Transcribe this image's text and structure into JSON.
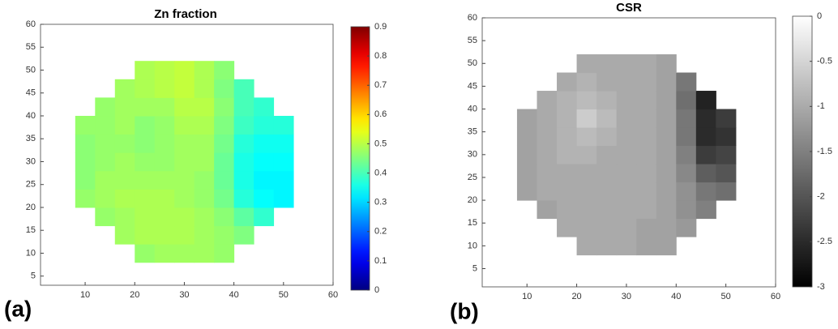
{
  "chart_data": [
    {
      "type": "heatmap",
      "title": "Zn fraction",
      "panel_label": "(a)",
      "colormap": "jet",
      "clim": [
        0,
        0.9
      ],
      "cticks": [
        0,
        0.1,
        0.2,
        0.3,
        0.4,
        0.5,
        0.6,
        0.7,
        0.8,
        0.9
      ],
      "xlim": [
        1,
        60
      ],
      "ylim": [
        3,
        60
      ],
      "xticks": [
        10,
        20,
        30,
        40,
        50,
        60
      ],
      "yticks": [
        5,
        10,
        15,
        20,
        25,
        30,
        35,
        40,
        45,
        50,
        55,
        60
      ],
      "x": [
        10,
        14,
        18,
        22,
        26,
        30,
        34,
        38,
        42,
        46,
        50
      ],
      "y": [
        10,
        14,
        18,
        22,
        26,
        30,
        34,
        38,
        42,
        46,
        50
      ],
      "z": [
        [
          null,
          null,
          null,
          0.47,
          0.48,
          0.48,
          0.48,
          0.47,
          null,
          null,
          null
        ],
        [
          null,
          null,
          0.48,
          0.49,
          0.49,
          0.49,
          0.48,
          0.47,
          0.45,
          null,
          null
        ],
        [
          null,
          0.47,
          0.48,
          0.49,
          0.49,
          0.49,
          0.48,
          0.46,
          0.42,
          0.38,
          null
        ],
        [
          0.47,
          0.48,
          0.49,
          0.49,
          0.49,
          0.48,
          0.47,
          0.44,
          0.37,
          0.34,
          0.33
        ],
        [
          0.46,
          0.48,
          0.48,
          0.48,
          0.48,
          0.48,
          0.47,
          0.43,
          0.36,
          0.33,
          0.33
        ],
        [
          0.46,
          0.47,
          0.48,
          0.47,
          0.47,
          0.48,
          0.48,
          0.43,
          0.36,
          0.34,
          0.34
        ],
        [
          0.46,
          0.47,
          0.47,
          0.46,
          0.47,
          0.48,
          0.48,
          0.44,
          0.37,
          0.35,
          0.35
        ],
        [
          0.47,
          0.47,
          0.48,
          0.46,
          0.47,
          0.49,
          0.49,
          0.45,
          0.39,
          0.37,
          0.37
        ],
        [
          null,
          0.47,
          0.48,
          0.48,
          0.48,
          0.5,
          0.5,
          0.46,
          0.4,
          0.38,
          null
        ],
        [
          null,
          null,
          0.48,
          0.49,
          0.5,
          0.51,
          0.49,
          0.45,
          0.4,
          null,
          null
        ],
        [
          null,
          null,
          null,
          0.49,
          0.5,
          0.51,
          0.49,
          0.46,
          null,
          null,
          null
        ]
      ]
    },
    {
      "type": "heatmap",
      "title": "CSR",
      "panel_label": "(b)",
      "colormap": "gray",
      "clim": [
        -3,
        0
      ],
      "cticks": [
        0,
        -0.5,
        -1,
        -1.5,
        -2,
        -2.5,
        -3
      ],
      "xlim": [
        1,
        60
      ],
      "ylim": [
        1,
        60
      ],
      "xticks": [
        10,
        20,
        30,
        40,
        50,
        60
      ],
      "yticks": [
        5,
        10,
        15,
        20,
        25,
        30,
        35,
        40,
        45,
        50,
        55,
        60
      ],
      "x": [
        10,
        14,
        18,
        22,
        26,
        30,
        34,
        38,
        42,
        46,
        50
      ],
      "y": [
        10,
        14,
        18,
        22,
        26,
        30,
        34,
        38,
        42,
        46,
        50
      ],
      "z": [
        [
          null,
          null,
          null,
          -1.0,
          -1.0,
          -1.0,
          -1.1,
          -1.1,
          null,
          null,
          null
        ],
        [
          null,
          null,
          -1.0,
          -1.0,
          -1.0,
          -1.0,
          -1.1,
          -1.1,
          -1.2,
          null,
          null
        ],
        [
          null,
          -1.1,
          -1.0,
          -1.0,
          -1.0,
          -1.0,
          -1.0,
          -1.1,
          -1.3,
          -1.5,
          null
        ],
        [
          -1.1,
          -1.0,
          -1.0,
          -1.0,
          -1.0,
          -1.0,
          -1.0,
          -1.1,
          -1.3,
          -1.6,
          -1.7
        ],
        [
          -1.1,
          -1.0,
          -1.0,
          -1.0,
          -1.0,
          -1.0,
          -1.0,
          -1.1,
          -1.4,
          -1.9,
          -2.0
        ],
        [
          -1.1,
          -1.0,
          -0.9,
          -0.9,
          -1.0,
          -1.0,
          -1.0,
          -1.1,
          -1.5,
          -2.3,
          -2.2
        ],
        [
          -1.1,
          -1.0,
          -0.9,
          -0.8,
          -0.9,
          -1.0,
          -1.0,
          -1.1,
          -1.6,
          -2.5,
          -2.4
        ],
        [
          -1.1,
          -1.0,
          -0.9,
          -0.6,
          -0.8,
          -1.0,
          -1.0,
          -1.1,
          -1.6,
          -2.5,
          -2.3
        ],
        [
          null,
          -1.0,
          -0.9,
          -0.8,
          -0.9,
          -1.0,
          -1.0,
          -1.1,
          -1.7,
          -2.6,
          null
        ],
        [
          null,
          null,
          -1.0,
          -0.9,
          -1.0,
          -1.0,
          -1.0,
          -1.1,
          -1.6,
          null,
          null
        ],
        [
          null,
          null,
          null,
          -1.0,
          -1.0,
          -1.0,
          -1.0,
          -1.1,
          null,
          null,
          null
        ]
      ]
    }
  ]
}
